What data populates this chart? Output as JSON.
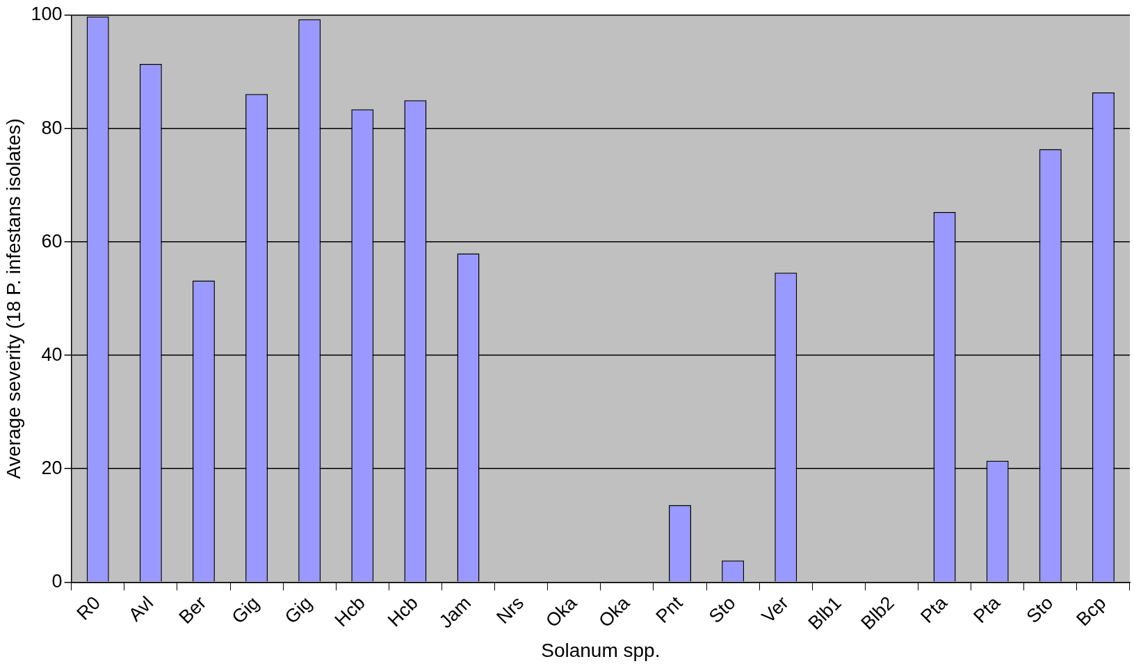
{
  "chart_data": {
    "type": "bar",
    "xlabel": "Solanum spp.",
    "ylabel": "Average severity (18 P. infestans isolates)",
    "categories": [
      "R0",
      "Avl",
      "Ber",
      "Gig",
      "Gig",
      "Hcb",
      "Hcb",
      "Jam",
      "Nrs",
      "Oka",
      "Oka",
      "Pnt",
      "Sto",
      "Ver",
      "Blb1",
      "Blb2",
      "Pta",
      "Pta",
      "Sto",
      "Bcp"
    ],
    "values": [
      99.8,
      91.4,
      53.2,
      86.1,
      99.3,
      83.4,
      85.0,
      58.0,
      0,
      0,
      0,
      13.6,
      3.8,
      54.6,
      0,
      0,
      65.3,
      21.4,
      76.4,
      86.4
    ],
    "color": "#9999ff",
    "ylim": [
      0,
      100
    ],
    "yticks": [
      0,
      20,
      40,
      60,
      80,
      100
    ],
    "grid": "y"
  }
}
